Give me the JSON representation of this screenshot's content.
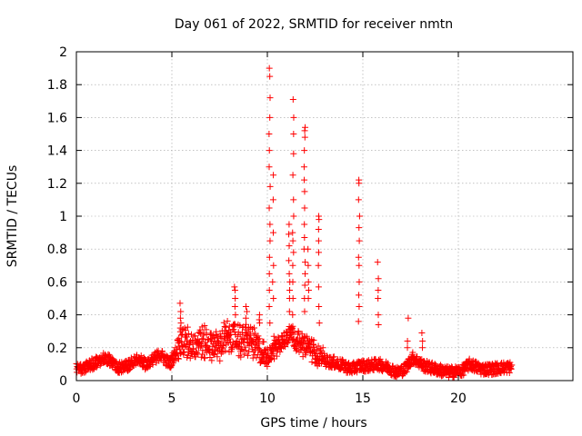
{
  "chart_data": {
    "type": "scatter",
    "title": "Day 061 of 2022, SRMTID for receiver nmtn",
    "xlabel": "GPS time / hours",
    "ylabel": "SRMTID / TECUs",
    "xlim": [
      0,
      26
    ],
    "ylim": [
      0,
      2
    ],
    "xticks": [
      0,
      5,
      10,
      15,
      20
    ],
    "yticks": [
      0,
      0.2,
      0.4,
      0.6,
      0.8,
      1,
      1.2,
      1.4,
      1.6,
      1.8,
      2
    ],
    "grid": true,
    "marker": "+",
    "colors": {
      "series": "#ff0000",
      "axis": "#000000",
      "grid": "#a0a0a0"
    },
    "baseline_profile": [
      [
        0.0,
        0.07
      ],
      [
        0.5,
        0.08
      ],
      [
        1.0,
        0.11
      ],
      [
        1.5,
        0.14
      ],
      [
        1.8,
        0.12
      ],
      [
        2.2,
        0.08
      ],
      [
        2.7,
        0.09
      ],
      [
        3.2,
        0.14
      ],
      [
        3.6,
        0.1
      ],
      [
        4.0,
        0.13
      ],
      [
        4.4,
        0.16
      ],
      [
        4.9,
        0.1
      ],
      [
        5.3,
        0.2
      ],
      [
        5.6,
        0.22
      ],
      [
        6.0,
        0.2
      ],
      [
        6.5,
        0.22
      ],
      [
        7.0,
        0.2
      ],
      [
        7.5,
        0.2
      ],
      [
        7.8,
        0.24
      ],
      [
        8.2,
        0.25
      ],
      [
        8.6,
        0.22
      ],
      [
        9.0,
        0.24
      ],
      [
        9.5,
        0.18
      ],
      [
        9.9,
        0.12
      ],
      [
        10.4,
        0.2
      ],
      [
        10.8,
        0.22
      ],
      [
        11.2,
        0.3
      ],
      [
        11.6,
        0.22
      ],
      [
        12.2,
        0.2
      ],
      [
        12.6,
        0.14
      ],
      [
        13.0,
        0.12
      ],
      [
        13.5,
        0.11
      ],
      [
        14.0,
        0.09
      ],
      [
        14.4,
        0.07
      ],
      [
        14.8,
        0.09
      ],
      [
        15.3,
        0.09
      ],
      [
        15.8,
        0.1
      ],
      [
        16.3,
        0.08
      ],
      [
        16.8,
        0.05
      ],
      [
        17.2,
        0.07
      ],
      [
        17.6,
        0.14
      ],
      [
        18.2,
        0.09
      ],
      [
        18.8,
        0.07
      ],
      [
        19.5,
        0.05
      ],
      [
        20.2,
        0.06
      ],
      [
        20.6,
        0.1
      ],
      [
        21.2,
        0.07
      ],
      [
        21.8,
        0.07
      ],
      [
        22.4,
        0.08
      ],
      [
        22.8,
        0.08
      ]
    ],
    "spikes": [
      {
        "x": 5.45,
        "values": [
          0.47,
          0.42,
          0.38,
          0.35,
          0.32
        ]
      },
      {
        "x": 8.3,
        "values": [
          0.57,
          0.55,
          0.5,
          0.45,
          0.4
        ]
      },
      {
        "x": 8.9,
        "values": [
          0.45,
          0.42,
          0.38
        ]
      },
      {
        "x": 9.6,
        "values": [
          0.4,
          0.37,
          0.35
        ]
      },
      {
        "x": 10.12,
        "values": [
          1.9,
          1.85,
          1.72,
          1.6,
          1.5,
          1.4,
          1.3,
          1.18,
          1.05,
          0.95,
          0.85,
          0.75,
          0.65,
          0.55,
          0.45,
          0.35
        ]
      },
      {
        "x": 10.3,
        "values": [
          1.25,
          1.1,
          0.9,
          0.7,
          0.6,
          0.5
        ]
      },
      {
        "x": 11.15,
        "values": [
          0.95,
          0.89,
          0.82,
          0.73,
          0.65,
          0.6,
          0.55,
          0.5,
          0.42
        ]
      },
      {
        "x": 11.35,
        "values": [
          1.71,
          1.6,
          1.5,
          1.38,
          1.25,
          1.1,
          1.0,
          0.9,
          0.85,
          0.78,
          0.7,
          0.6,
          0.5,
          0.4
        ]
      },
      {
        "x": 11.95,
        "values": [
          1.54,
          1.52,
          1.48,
          1.4,
          1.3,
          1.22,
          1.15,
          1.05,
          0.95,
          0.87,
          0.8,
          0.72,
          0.65,
          0.58,
          0.5,
          0.42
        ]
      },
      {
        "x": 12.15,
        "values": [
          0.8,
          0.7,
          0.6,
          0.55,
          0.5
        ]
      },
      {
        "x": 12.7,
        "values": [
          1.0,
          0.98,
          0.92,
          0.85,
          0.78,
          0.7,
          0.57,
          0.45,
          0.35
        ]
      },
      {
        "x": 14.8,
        "values": [
          1.22,
          1.2,
          1.1,
          1.0,
          0.93,
          0.85,
          0.75,
          0.7,
          0.6,
          0.52,
          0.45,
          0.36
        ]
      },
      {
        "x": 15.8,
        "values": [
          0.72,
          0.62,
          0.55,
          0.5,
          0.4,
          0.34
        ]
      },
      {
        "x": 17.35,
        "values": [
          0.38,
          0.24,
          0.2
        ]
      },
      {
        "x": 18.1,
        "values": [
          0.29,
          0.24,
          0.2
        ]
      }
    ]
  }
}
